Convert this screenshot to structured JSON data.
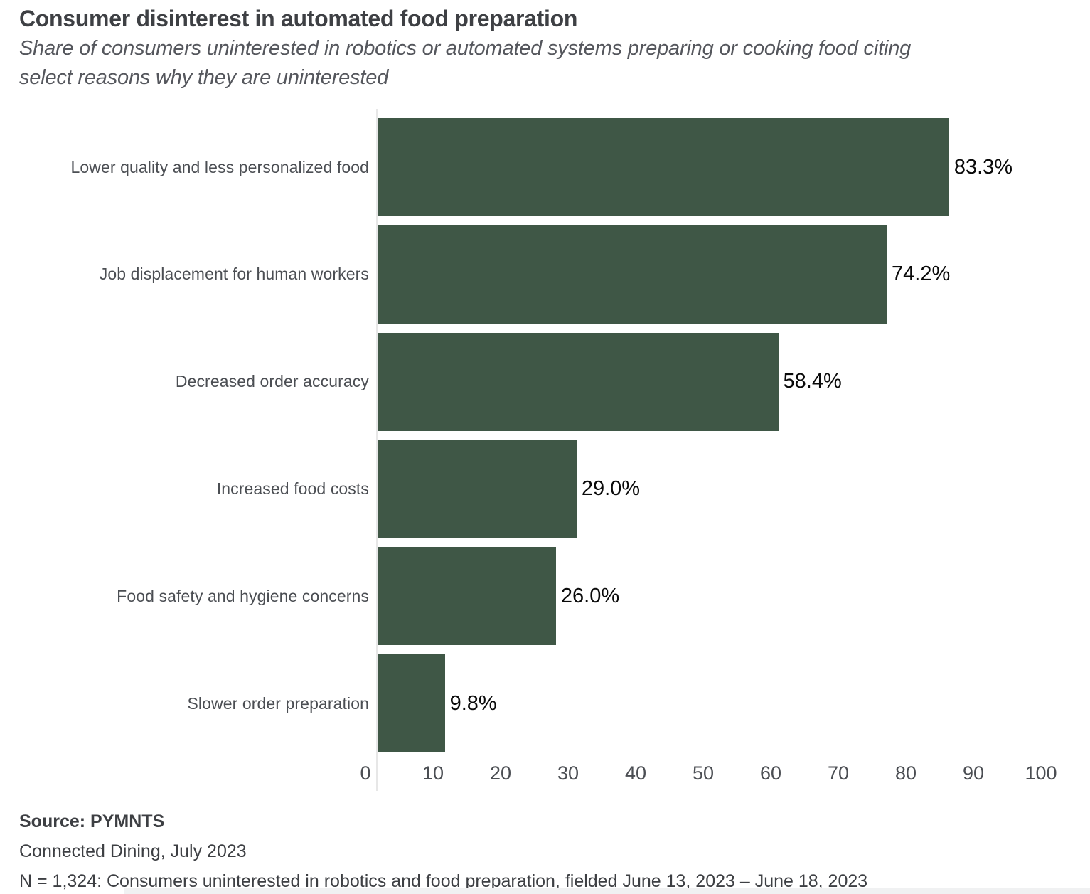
{
  "header": {
    "title": "Consumer disinterest in automated food preparation",
    "subtitle_lines": [
      "Share of consumers  uninterested in robotics or automated systems preparing or cooking food citing",
      "select reasons why they are uninterested"
    ]
  },
  "chart_data": {
    "type": "bar",
    "orientation": "horizontal",
    "title": "Consumer disinterest in automated food preparation",
    "subtitle": "Share of consumers  uninterested in robotics or automated systems preparing or cooking food citing select reasons why they are uninterested",
    "categories": [
      "Lower quality and less personalized food",
      "Job displacement for human workers",
      "Decreased order accuracy",
      "Increased food costs",
      "Food safety and hygiene concerns",
      "Slower order preparation"
    ],
    "values": [
      83.3,
      74.2,
      58.4,
      29.0,
      26.0,
      9.8
    ],
    "value_labels": [
      "83.3%",
      "74.2%",
      "58.4%",
      "29.0%",
      "26.0%",
      "9.8%"
    ],
    "xlabel": "",
    "ylabel": "",
    "xlim": [
      0,
      100
    ],
    "x_ticks": [
      0,
      10,
      20,
      30,
      40,
      50,
      60,
      70,
      80,
      90,
      100
    ],
    "grid": false,
    "legend": "none",
    "bar_color": "#3f5746",
    "axis_line_color": "#e7e7e7",
    "value_label_color": "#0a0a0a"
  },
  "footer": {
    "source": "Source: PYMNTS",
    "report": "Connected Dining, July 2023",
    "note": "N = 1,324: Consumers uninterested in robotics and food preparation, fielded June 13, 2023 – June 18, 2023"
  }
}
